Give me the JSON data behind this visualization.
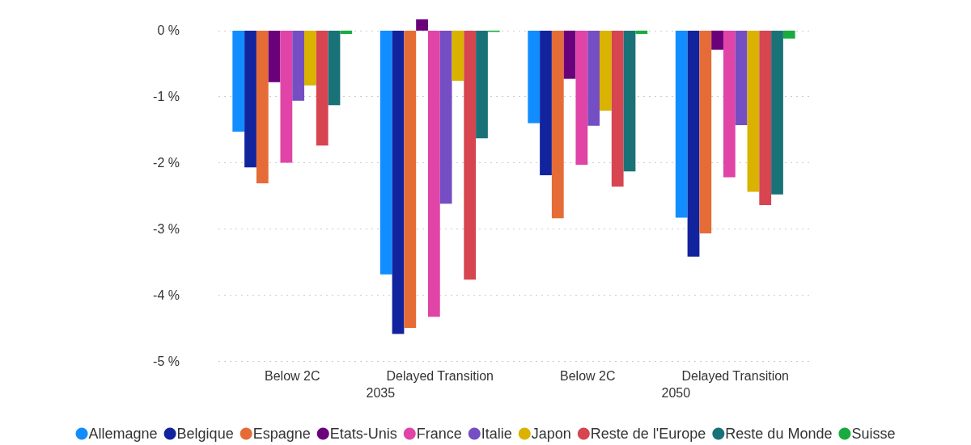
{
  "chart_data": {
    "type": "bar",
    "categories": [
      "Below 2C",
      "Delayed Transition",
      "Below 2C",
      "Delayed Transition"
    ],
    "annotations": [
      "2035",
      "2050"
    ],
    "series": [
      {
        "name": "Allemagne",
        "color": "#118dff",
        "values": [
          -1.53,
          -3.69,
          -1.4,
          -2.83
        ]
      },
      {
        "name": "Belgique",
        "color": "#12239e",
        "values": [
          -2.07,
          -4.59,
          -2.19,
          -3.42
        ]
      },
      {
        "name": "Espagne",
        "color": "#e66c37",
        "values": [
          -2.31,
          -4.5,
          -2.84,
          -3.07
        ]
      },
      {
        "name": "Etats-Unis",
        "color": "#6b007b",
        "values": [
          -0.78,
          0.17,
          -0.73,
          -0.29
        ]
      },
      {
        "name": "France",
        "color": "#e044a7",
        "values": [
          -2.0,
          -4.33,
          -2.03,
          -2.22
        ]
      },
      {
        "name": "Italie",
        "color": "#744ec2",
        "values": [
          -1.06,
          -2.62,
          -1.44,
          -1.43
        ]
      },
      {
        "name": "Japon",
        "color": "#d9b300",
        "values": [
          -0.83,
          -0.76,
          -1.21,
          -2.44
        ]
      },
      {
        "name": "Reste de l'Europe",
        "color": "#d64550",
        "values": [
          -1.74,
          -3.77,
          -2.36,
          -2.64
        ]
      },
      {
        "name": "Reste du Monde",
        "color": "#197278",
        "values": [
          -1.13,
          -1.63,
          -2.13,
          -2.48
        ]
      },
      {
        "name": "Suisse",
        "color": "#1aab40",
        "values": [
          -0.05,
          -0.02,
          -0.05,
          -0.12
        ]
      }
    ],
    "ylim": [
      -5,
      0.17
    ],
    "yticks": [
      {
        "value": -5,
        "label": "-5 %"
      },
      {
        "value": -4,
        "label": "-4 %"
      },
      {
        "value": -3,
        "label": "-3 %"
      },
      {
        "value": -2,
        "label": "-2 %"
      },
      {
        "value": -1,
        "label": "-1 %"
      },
      {
        "value": 0,
        "label": "0 %"
      }
    ],
    "grid": "y",
    "legend": "bottom"
  }
}
